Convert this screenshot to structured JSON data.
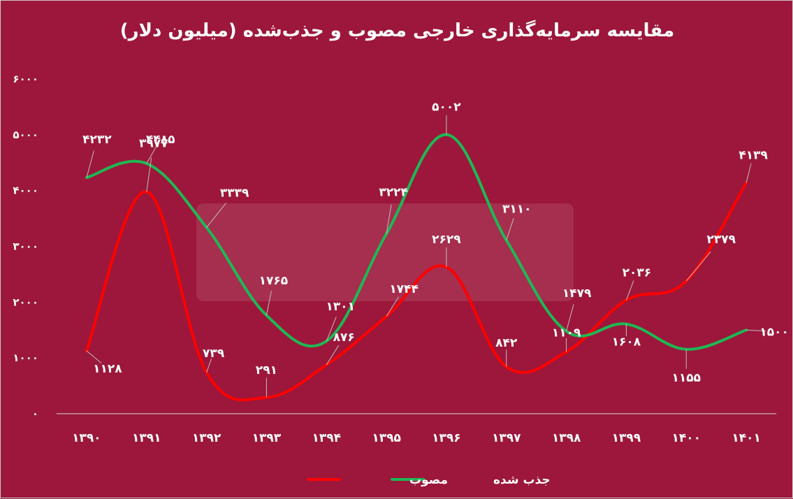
{
  "chart_data": {
    "type": "line",
    "title": "مقایسه سرمایه‌گذاری خارجی مصوب و جذب‌شده (میلیون دلار)",
    "categories": [
      "۱۳۹۰",
      "۱۳۹۱",
      "۱۳۹۲",
      "۱۳۹۳",
      "۱۳۹۴",
      "۱۳۹۵",
      "۱۳۹۶",
      "۱۳۹۷",
      "۱۳۹۸",
      "۱۳۹۹",
      "۱۴۰۰",
      "۱۴۰۱"
    ],
    "ylim": [
      0,
      6000
    ],
    "yticks": [
      0,
      1000,
      2000,
      3000,
      4000,
      5000,
      6000
    ],
    "ytick_labels": [
      "۰",
      "۱۰۰۰",
      "۲۰۰۰",
      "۳۰۰۰",
      "۴۰۰۰",
      "۵۰۰۰",
      "۶۰۰۰"
    ],
    "legend_position": "bottom",
    "grid": false,
    "series": [
      {
        "name": "مصوب",
        "color": "#ff0000",
        "values": [
          1128,
          3977,
          739,
          291,
          876,
          1744,
          2629,
          842,
          1109,
          2036,
          2379,
          4139
        ],
        "labels": [
          "۱۱۲۸",
          "۳۹۷۷",
          "۷۳۹",
          "۲۹۱",
          "۸۷۶",
          "۱۷۴۴",
          "۲۶۲۹",
          "۸۴۲",
          "۱۱۰۹",
          "۲۰۳۶",
          "۲۳۷۹",
          "۴۱۳۹"
        ]
      },
      {
        "name": "جذب شده",
        "color": "#1db954",
        "values": [
          4232,
          4485,
          3339,
          1765,
          1301,
          3224,
          5002,
          3110,
          1479,
          1608,
          1155,
          1500
        ],
        "labels": [
          "۴۲۳۲",
          "۴۴۸۵",
          "۳۳۳۹",
          "۱۷۶۵",
          "۱۳۰۱",
          "۳۲۲۴",
          "۵۰۰۲",
          "۳۱۱۰",
          "۱۴۷۹",
          "۱۶۰۸",
          "۱۱۵۵",
          "۱۵۰۰"
        ]
      }
    ]
  }
}
